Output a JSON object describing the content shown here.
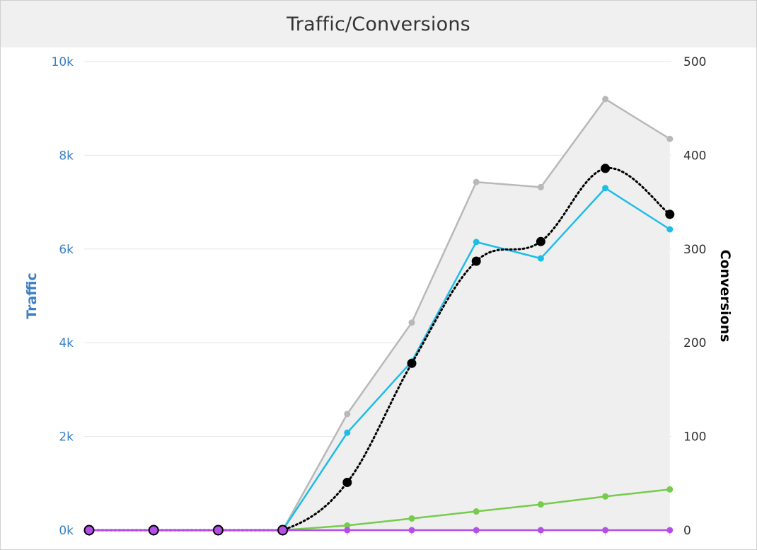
{
  "header": {
    "title": "Traffic/Conversions"
  },
  "colors": {
    "traffic_axis": "#3b7fc4",
    "gray": "#b8b8b8",
    "gray_fill": "#efefef",
    "cyan": "#1dbde8",
    "black": "#000000",
    "green": "#76cc4a",
    "purple": "#b44fe6"
  },
  "chart_data": {
    "type": "line",
    "title": "Traffic/Conversions",
    "x": [
      1,
      2,
      3,
      4,
      5,
      6,
      7,
      8,
      9,
      10
    ],
    "y_left": {
      "label": "Traffic",
      "range": [
        0,
        10000
      ],
      "ticks": [
        "0k",
        "2k",
        "4k",
        "6k",
        "8k",
        "10k"
      ]
    },
    "y_right": {
      "label": "Conversions",
      "range": [
        0,
        500
      ],
      "ticks": [
        "0",
        "100",
        "200",
        "300",
        "400",
        "500"
      ]
    },
    "grid": true,
    "series": [
      {
        "axis": "left",
        "style": "area",
        "color": "#b8b8b8",
        "values": [
          0,
          0,
          0,
          0,
          2480,
          4430,
          7430,
          7320,
          9200,
          8350
        ]
      },
      {
        "axis": "left",
        "style": "line",
        "color": "#1dbde8",
        "values": [
          0,
          0,
          0,
          0,
          2080,
          3600,
          6150,
          5800,
          7300,
          6420
        ]
      },
      {
        "axis": "right",
        "style": "dotted-smooth",
        "color": "#000000",
        "values": [
          0,
          0,
          0,
          0,
          51,
          178,
          287,
          308,
          386,
          337
        ]
      },
      {
        "axis": "left",
        "style": "line",
        "color": "#76cc4a",
        "values": [
          0,
          0,
          0,
          0,
          100,
          250,
          400,
          550,
          720,
          870
        ]
      },
      {
        "axis": "left",
        "style": "line",
        "color": "#b44fe6",
        "values": [
          0,
          0,
          0,
          0,
          0,
          0,
          0,
          0,
          0,
          0
        ]
      }
    ]
  }
}
